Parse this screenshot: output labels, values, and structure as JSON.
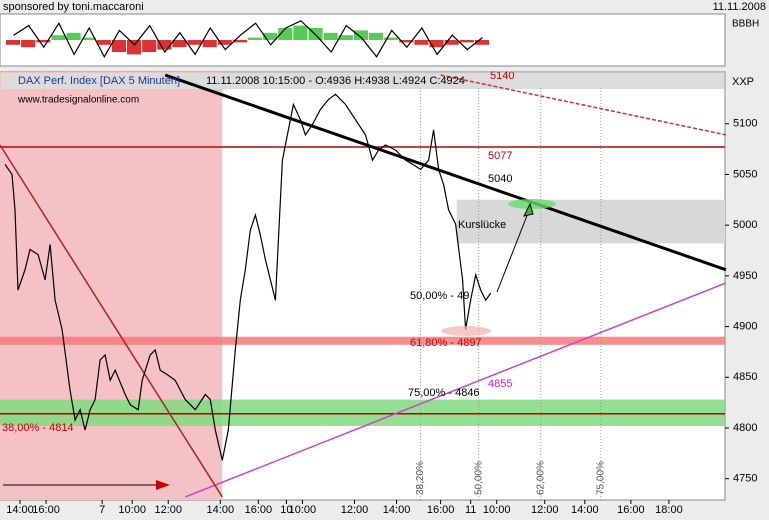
{
  "chart_data": {
    "type": "line",
    "sponsor": "sponsored by toni.maccaroni",
    "date": "11.11.2008",
    "indicator_label": "BBBH",
    "symbol": "XXP",
    "title": "DAX Perf. Index [DAX 5 Minuten]",
    "subtitle": "11.11.2008 10:15:00 - O:4936 H:4938 L:4924 C:4924",
    "source": "www.tradesignalonline.com",
    "color": "#000000",
    "x": [
      2.5,
      6,
      7.5,
      9,
      12.5,
      15,
      19,
      22.5,
      25,
      27.5,
      31,
      35,
      37.5,
      40,
      42.5,
      45,
      47.5,
      50,
      52.5,
      55,
      57.5,
      62.5,
      65,
      69,
      71,
      75,
      77.5,
      80,
      84,
      87.5,
      92.5,
      97.5,
      102.5,
      105,
      107.5,
      111,
      114,
      117.5,
      120,
      122.5,
      125,
      127.5,
      130,
      132.5,
      135,
      137.5,
      141,
      144,
      146.5,
      150,
      152.5,
      156,
      160,
      164,
      167.5,
      172.5,
      177.5,
      182.5,
      186,
      189,
      192.5,
      197.5,
      202.5,
      206,
      210,
      214,
      216.5,
      219,
      221.5,
      224,
      227.5,
      231,
      232.5,
      235,
      237.5,
      240,
      242.5,
      245
    ],
    "values": [
      5060,
      5050,
      5015,
      4936,
      4956,
      4976,
      4971,
      4946,
      4981,
      4926,
      4897,
      4837,
      4808,
      4818,
      4798,
      4818,
      4828,
      4867,
      4872,
      4847,
      4857,
      4833,
      4823,
      4818,
      4847,
      4872,
      4877,
      4857,
      4852,
      4847,
      4828,
      4818,
      4833,
      4828,
      4798,
      4768,
      4798,
      4877,
      4926,
      4956,
      4995,
      5010,
      4990,
      4966,
      4946,
      4926,
      5064,
      5094,
      5119,
      5104,
      5089,
      5099,
      5114,
      5124,
      5129,
      5119,
      5104,
      5089,
      5064,
      5074,
      5079,
      5074,
      5064,
      5060,
      5055,
      5064,
      5094,
      5055,
      5040,
      5015,
      5001,
      4946,
      4897,
      4926,
      4951,
      4936,
      4926,
      4933
    ],
    "xlim": [
      0,
      362
    ],
    "ylim": [
      4729,
      5151
    ],
    "yticks": [
      4750,
      4800,
      4850,
      4900,
      4950,
      5000,
      5050,
      5100
    ],
    "xticks": [
      {
        "value": 10,
        "label": "14:00"
      },
      {
        "value": 23,
        "label": "16:00"
      },
      {
        "value": 51,
        "label": "7"
      },
      {
        "value": 66,
        "label": "10:00"
      },
      {
        "value": 84,
        "label": "12:00"
      },
      {
        "value": 110,
        "label": "14:00"
      },
      {
        "value": 129,
        "label": "16:00"
      },
      {
        "value": 143,
        "label": "10"
      },
      {
        "value": 151,
        "label": "10:00"
      },
      {
        "value": 177,
        "label": "12:00"
      },
      {
        "value": 198,
        "label": "14:00"
      },
      {
        "value": 220,
        "label": "16:00"
      },
      {
        "value": 235,
        "label": "11"
      },
      {
        "value": 248,
        "label": "10:00"
      },
      {
        "value": 272,
        "label": "12:00"
      },
      {
        "value": 292,
        "label": "14:00"
      },
      {
        "value": 315,
        "label": "16:00"
      },
      {
        "value": 334,
        "label": "18:00"
      }
    ],
    "shading": {
      "xlim": [
        0,
        111
      ],
      "color": "#f4c2c4"
    },
    "bands": [
      {
        "range": [
          4802,
          4828
        ],
        "color": "#7fdc7f"
      },
      {
        "range": [
          4882,
          4890
        ],
        "color": "#f47a7a"
      }
    ],
    "gap_box": {
      "xlim": [
        228,
        362
      ],
      "range": [
        4982,
        5025
      ],
      "color": "#d8d8d8"
    },
    "levels": [
      {
        "value": 5077,
        "color": "#c00000"
      },
      {
        "value": 4814,
        "color": "#c00000"
      }
    ],
    "trend_lines": [
      {
        "points": [
          [
            82.5,
            5148
          ],
          [
            362.5,
            4956
          ]
        ],
        "color": "#000000"
      },
      {
        "points": [
          [
            92.5,
            4732
          ],
          [
            362.5,
            4943
          ]
        ],
        "color": "#cc44cc"
      },
      {
        "points": [
          [
            220,
            5148
          ],
          [
            362.5,
            5089
          ]
        ],
        "color": "#cc3333"
      },
      {
        "points": [
          [
            0,
            5079
          ],
          [
            111,
            4732
          ]
        ],
        "color": "#b22222"
      }
    ],
    "fib_lines": [
      {
        "value": 210,
        "label": "38,20%"
      },
      {
        "value": 239,
        "label": "50,00%"
      },
      {
        "value": 270,
        "label": "62,00%"
      },
      {
        "value": 300,
        "label": "75,00%"
      }
    ],
    "annotations": [
      "5140",
      "5077",
      "5040",
      "Kurslücke",
      "50,00% - 49",
      "61,80% - 4897",
      "75,00% - 4846",
      "4855",
      "38,00% - 4814"
    ],
    "indicator": {
      "ylim": [
        -1,
        1
      ],
      "histogram": [
        -0.2,
        -0.3,
        -0.1,
        0.2,
        0.3,
        0.1,
        -0.2,
        -0.5,
        -0.6,
        -0.5,
        -0.4,
        -0.3,
        -0.2,
        -0.3,
        -0.2,
        -0.1,
        0.1,
        0.3,
        0.5,
        0.6,
        0.5,
        0.3,
        0.2,
        0.4,
        0.3,
        0.1,
        -0.1,
        -0.2,
        -0.3,
        -0.2,
        -0.1,
        -0.2
      ],
      "line": [
        0.2,
        0.6,
        -0.3,
        0.7,
        -0.6,
        0.5,
        -0.7,
        0.4,
        -0.2,
        0.6,
        -0.5,
        0.3,
        -0.6,
        0.5,
        -0.4,
        0.2,
        0.7,
        -0.2,
        0.5,
        0.8,
        0.2,
        -0.5,
        0.6,
        0.1,
        -0.7,
        0.4,
        -0.3,
        0.5,
        -0.6,
        0.2,
        -0.4,
        0.1
      ]
    }
  }
}
